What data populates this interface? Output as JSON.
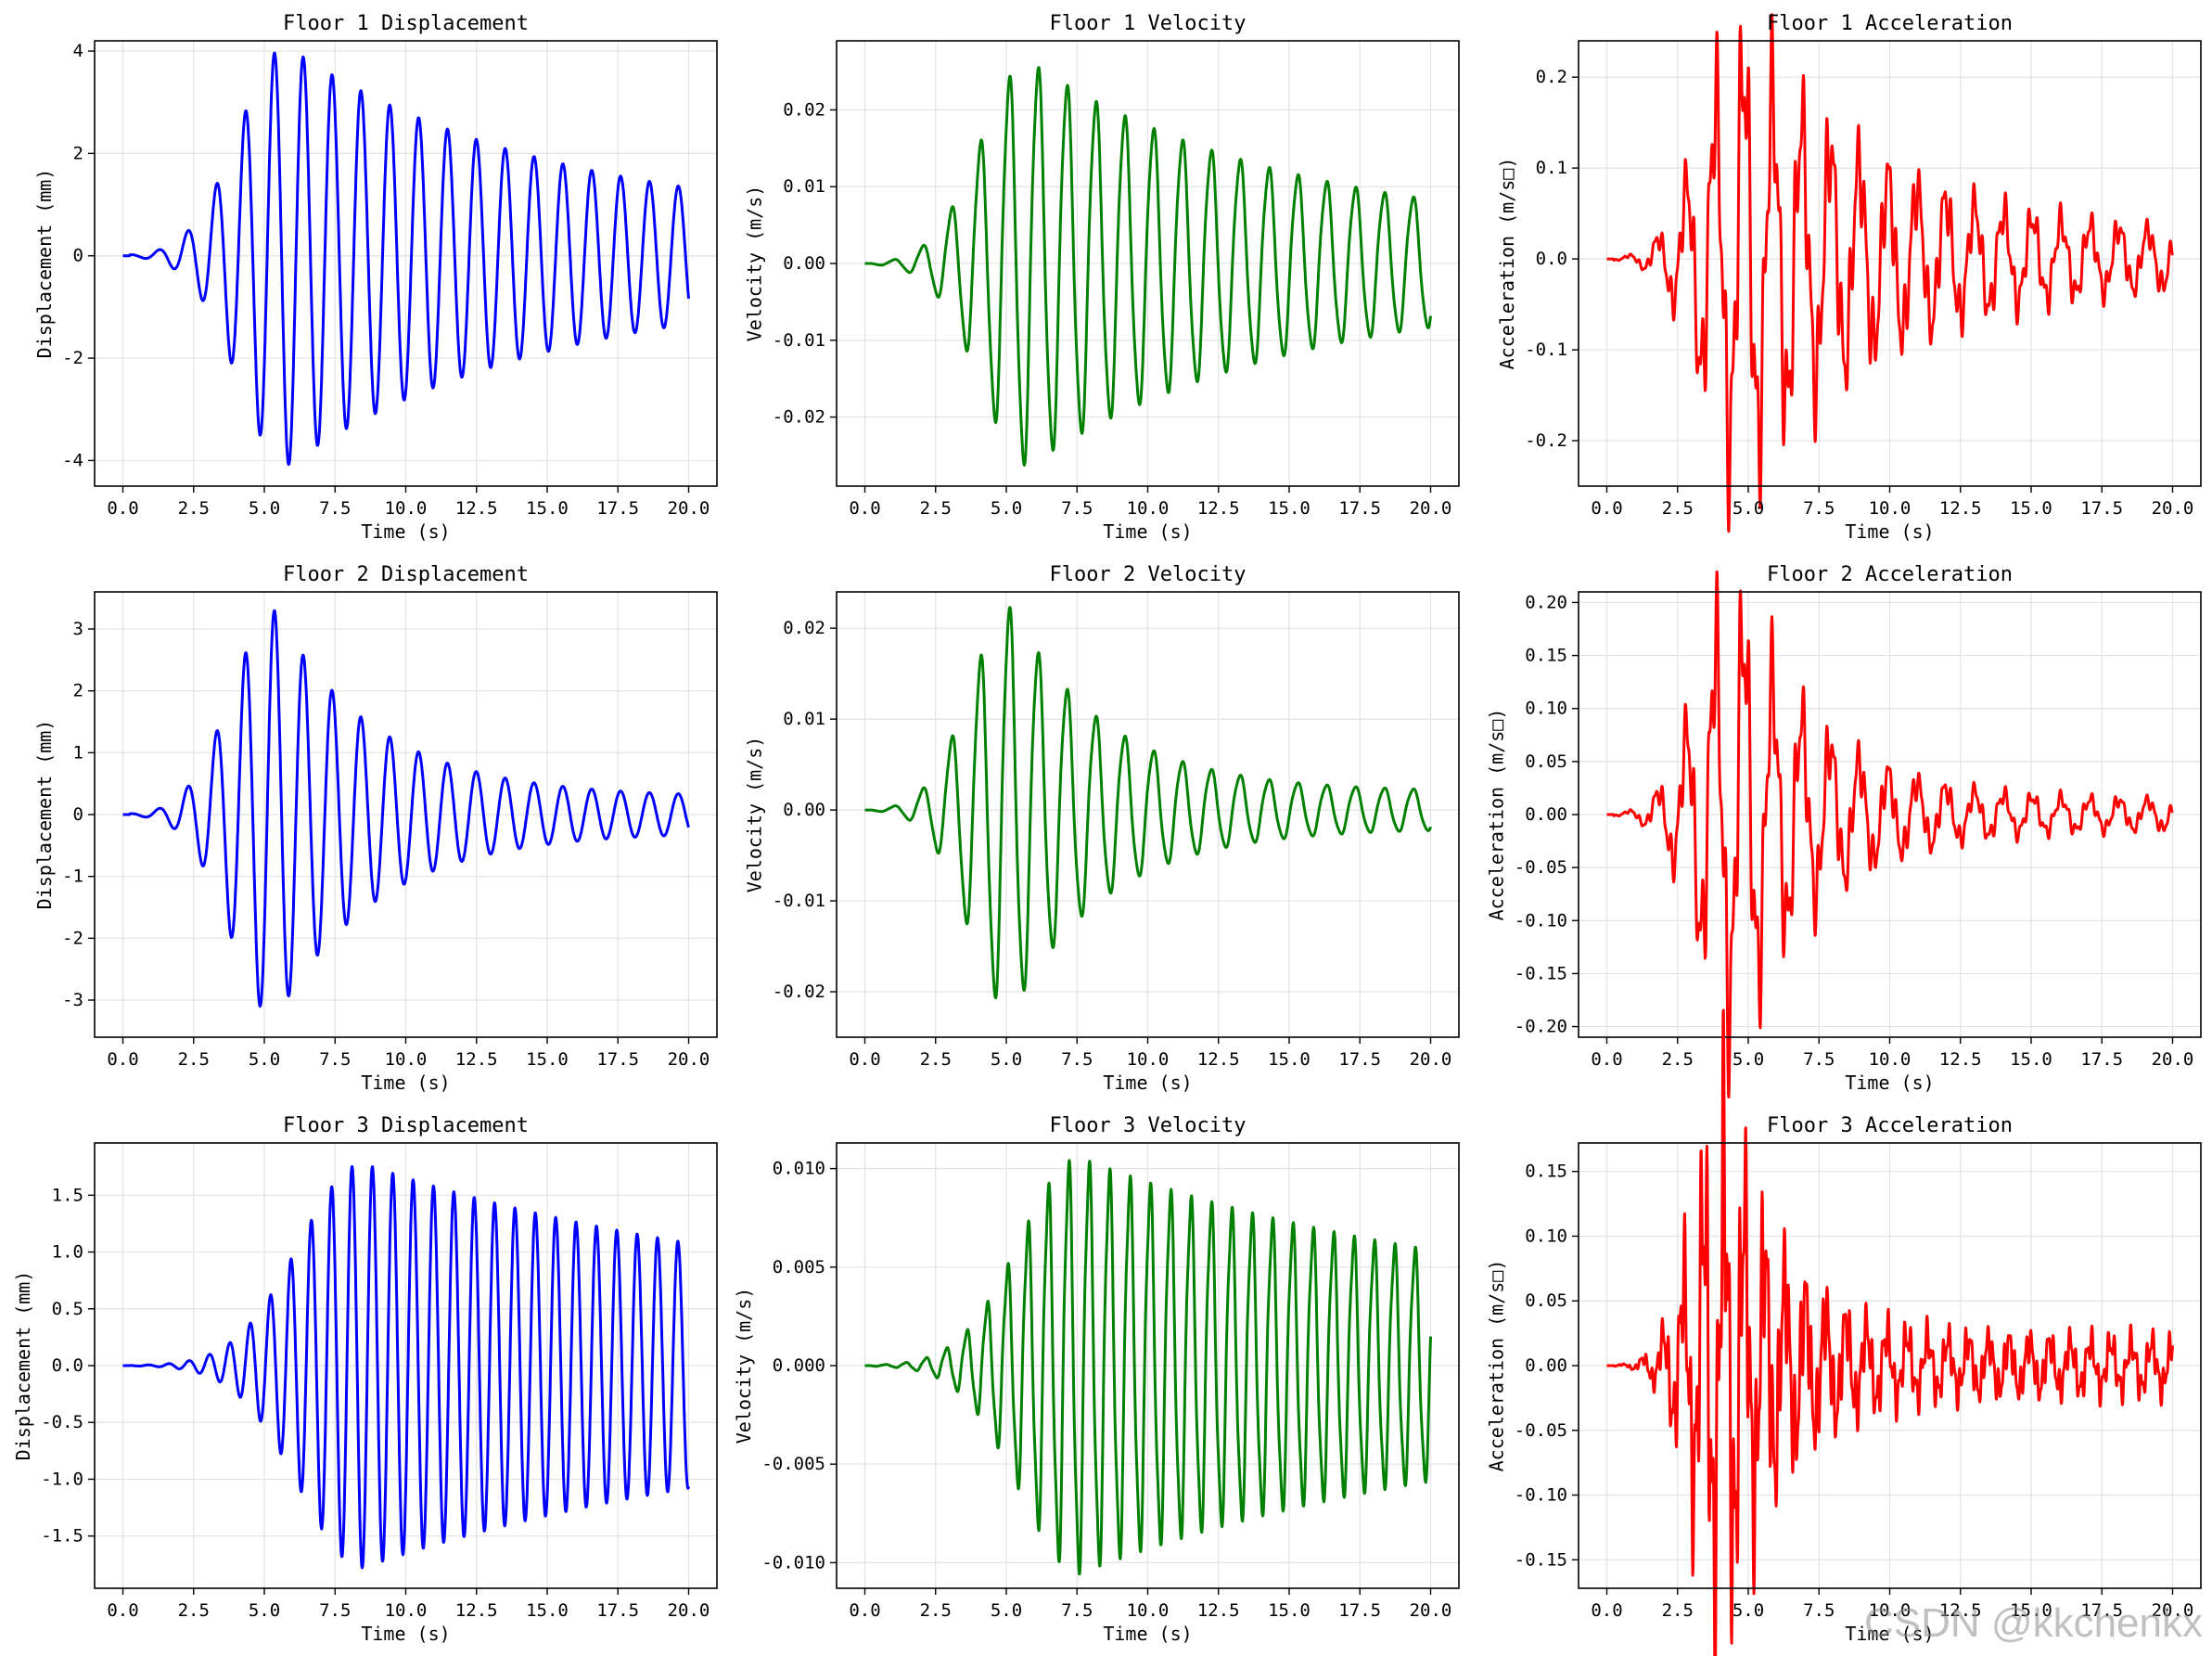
{
  "chart_data": [
    {
      "type": "line",
      "title": "Floor 1 Displacement",
      "xlabel": "Time (s)",
      "ylabel": "Displacement (mm)",
      "color": "#0000ff",
      "xlim": [
        -1,
        21
      ],
      "ylim": [
        -4.5,
        4.2
      ],
      "xticks": [
        "0.0",
        "2.5",
        "5.0",
        "7.5",
        "10.0",
        "12.5",
        "15.0",
        "17.5",
        "20.0"
      ],
      "yticks": [
        {
          "v": -4,
          "l": "-4"
        },
        {
          "v": -2,
          "l": "-2"
        },
        {
          "v": 0,
          "l": "0"
        },
        {
          "v": 2,
          "l": "2"
        },
        {
          "v": 4,
          "l": "4"
        }
      ],
      "gen": {
        "kind": "disp",
        "amp": 4.1,
        "peakT": 5.8,
        "rise": 2.4,
        "decay": 0.11,
        "floor": 0.6,
        "period": 1.02,
        "noise": 0
      }
    },
    {
      "type": "line",
      "title": "Floor 1 Velocity",
      "xlabel": "Time (s)",
      "ylabel": "Velocity (m/s)",
      "color": "#008000",
      "xlim": [
        -1,
        21
      ],
      "ylim": [
        -0.029,
        0.029
      ],
      "xticks": [
        "0.0",
        "2.5",
        "5.0",
        "7.5",
        "10.0",
        "12.5",
        "15.0",
        "17.5",
        "20.0"
      ],
      "yticks": [
        {
          "v": -0.02,
          "l": "-0.02"
        },
        {
          "v": -0.01,
          "l": "-0.01"
        },
        {
          "v": 0,
          "l": "0.00"
        },
        {
          "v": 0.01,
          "l": "0.01"
        },
        {
          "v": 0.02,
          "l": "0.02"
        }
      ],
      "gen": {
        "kind": "vel",
        "amp": 0.026,
        "peakT": 5.8,
        "rise": 2.4,
        "decay": 0.11,
        "floor": 0.0035,
        "period": 1.02,
        "noise": 0.06
      }
    },
    {
      "type": "line",
      "title": "Floor 1 Acceleration",
      "xlabel": "Time (s)",
      "ylabel": "Acceleration (m/s□)",
      "color": "#ff0000",
      "xlim": [
        -1,
        21
      ],
      "ylim": [
        -0.25,
        0.24
      ],
      "xticks": [
        "0.0",
        "2.5",
        "5.0",
        "7.5",
        "10.0",
        "12.5",
        "15.0",
        "17.5",
        "20.0"
      ],
      "yticks": [
        {
          "v": -0.2,
          "l": "-0.2"
        },
        {
          "v": -0.1,
          "l": "-0.1"
        },
        {
          "v": 0,
          "l": "0.0"
        },
        {
          "v": 0.1,
          "l": "0.1"
        },
        {
          "v": 0.2,
          "l": "0.2"
        }
      ],
      "gen": {
        "kind": "acc",
        "amp": 0.21,
        "peakT": 4.8,
        "rise": 2.0,
        "decay": 0.2,
        "floor": 0.02,
        "period": 1.02,
        "noise": 0.35
      }
    },
    {
      "type": "line",
      "title": "Floor 2 Displacement",
      "xlabel": "Time (s)",
      "ylabel": "Displacement (mm)",
      "color": "#0000ff",
      "xlim": [
        -1,
        21
      ],
      "ylim": [
        -3.6,
        3.6
      ],
      "xticks": [
        "0.0",
        "2.5",
        "5.0",
        "7.5",
        "10.0",
        "12.5",
        "15.0",
        "17.5",
        "20.0"
      ],
      "yticks": [
        {
          "v": -3,
          "l": "-3"
        },
        {
          "v": -2,
          "l": "-2"
        },
        {
          "v": -1,
          "l": "-1"
        },
        {
          "v": 0,
          "l": "0"
        },
        {
          "v": 1,
          "l": "1"
        },
        {
          "v": 2,
          "l": "2"
        },
        {
          "v": 3,
          "l": "3"
        }
      ],
      "gen": {
        "kind": "disp",
        "amp": 3.3,
        "peakT": 5.4,
        "rise": 2.2,
        "decay": 0.28,
        "floor": 0.28,
        "period": 1.02,
        "noise": 0
      }
    },
    {
      "type": "line",
      "title": "Floor 2 Velocity",
      "xlabel": "Time (s)",
      "ylabel": "Velocity (m/s)",
      "color": "#008000",
      "xlim": [
        -1,
        21
      ],
      "ylim": [
        -0.025,
        0.024
      ],
      "xticks": [
        "0.0",
        "2.5",
        "5.0",
        "7.5",
        "10.0",
        "12.5",
        "15.0",
        "17.5",
        "20.0"
      ],
      "yticks": [
        {
          "v": -0.02,
          "l": "-0.02"
        },
        {
          "v": -0.01,
          "l": "-0.01"
        },
        {
          "v": 0,
          "l": "0.00"
        },
        {
          "v": 0.01,
          "l": "0.01"
        },
        {
          "v": 0.02,
          "l": "0.02"
        }
      ],
      "gen": {
        "kind": "vel",
        "amp": 0.022,
        "peakT": 5.2,
        "rise": 2.1,
        "decay": 0.3,
        "floor": 0.002,
        "period": 1.02,
        "noise": 0.06
      }
    },
    {
      "type": "line",
      "title": "Floor 2 Acceleration",
      "xlabel": "Time (s)",
      "ylabel": "Acceleration (m/s□)",
      "color": "#ff0000",
      "xlim": [
        -1,
        21
      ],
      "ylim": [
        -0.21,
        0.21
      ],
      "xticks": [
        "0.0",
        "2.5",
        "5.0",
        "7.5",
        "10.0",
        "12.5",
        "15.0",
        "17.5",
        "20.0"
      ],
      "yticks": [
        {
          "v": -0.2,
          "l": "-0.20"
        },
        {
          "v": -0.15,
          "l": "-0.15"
        },
        {
          "v": -0.1,
          "l": "-0.10"
        },
        {
          "v": -0.05,
          "l": "-0.05"
        },
        {
          "v": 0,
          "l": "0.00"
        },
        {
          "v": 0.05,
          "l": "0.05"
        },
        {
          "v": 0.1,
          "l": "0.10"
        },
        {
          "v": 0.15,
          "l": "0.15"
        },
        {
          "v": 0.2,
          "l": "0.20"
        }
      ],
      "gen": {
        "kind": "acc",
        "amp": 0.18,
        "peakT": 4.6,
        "rise": 1.9,
        "decay": 0.35,
        "floor": 0.012,
        "period": 1.02,
        "noise": 0.35
      }
    },
    {
      "type": "line",
      "title": "Floor 3 Displacement",
      "xlabel": "Time (s)",
      "ylabel": "Displacement (mm)",
      "color": "#0000ff",
      "xlim": [
        -1,
        21
      ],
      "ylim": [
        -1.96,
        1.96
      ],
      "xticks": [
        "0.0",
        "2.5",
        "5.0",
        "7.5",
        "10.0",
        "12.5",
        "15.0",
        "17.5",
        "20.0"
      ],
      "yticks": [
        {
          "v": -1.5,
          "l": "-1.5"
        },
        {
          "v": -1,
          "l": "-1.0"
        },
        {
          "v": -0.5,
          "l": "-0.5"
        },
        {
          "v": 0,
          "l": "0.0"
        },
        {
          "v": 0.5,
          "l": "0.5"
        },
        {
          "v": 1,
          "l": "1.0"
        },
        {
          "v": 1.5,
          "l": "1.5"
        }
      ],
      "gen": {
        "kind": "disp",
        "amp": 1.78,
        "peakT": 8.5,
        "rise": 3.2,
        "decay": 0.065,
        "floor": 0.45,
        "period": 0.72,
        "noise": 0
      }
    },
    {
      "type": "line",
      "title": "Floor 3 Velocity",
      "xlabel": "Time (s)",
      "ylabel": "Velocity (m/s)",
      "color": "#008000",
      "xlim": [
        -1,
        21
      ],
      "ylim": [
        -0.0113,
        0.0113
      ],
      "xticks": [
        "0.0",
        "2.5",
        "5.0",
        "7.5",
        "10.0",
        "12.5",
        "15.0",
        "17.5",
        "20.0"
      ],
      "yticks": [
        {
          "v": -0.01,
          "l": "-0.010"
        },
        {
          "v": -0.005,
          "l": "-0.005"
        },
        {
          "v": 0,
          "l": "0.000"
        },
        {
          "v": 0.005,
          "l": "0.005"
        },
        {
          "v": 0.01,
          "l": "0.010"
        }
      ],
      "gen": {
        "kind": "vel",
        "amp": 0.0102,
        "peakT": 7.6,
        "rise": 3.0,
        "decay": 0.07,
        "floor": 0.0024,
        "period": 0.72,
        "noise": 0.1
      }
    },
    {
      "type": "line",
      "title": "Floor 3 Acceleration",
      "xlabel": "Time (s)",
      "ylabel": "Acceleration (m/s□)",
      "color": "#ff0000",
      "xlim": [
        -1,
        21
      ],
      "ylim": [
        -0.172,
        0.172
      ],
      "xticks": [
        "0.0",
        "2.5",
        "5.0",
        "7.5",
        "10.0",
        "12.5",
        "15.0",
        "17.5",
        "20.0"
      ],
      "yticks": [
        {
          "v": -0.15,
          "l": "-0.15"
        },
        {
          "v": -0.1,
          "l": "-0.10"
        },
        {
          "v": -0.05,
          "l": "-0.05"
        },
        {
          "v": 0,
          "l": "0.00"
        },
        {
          "v": 0.05,
          "l": "0.05"
        },
        {
          "v": 0.1,
          "l": "0.10"
        },
        {
          "v": 0.15,
          "l": "0.15"
        }
      ],
      "gen": {
        "kind": "acc",
        "amp": 0.15,
        "peakT": 4.2,
        "rise": 1.6,
        "decay": 0.5,
        "floor": 0.017,
        "period": 0.72,
        "noise": 0.55
      }
    }
  ],
  "watermark": "CSDN @kkchenkx"
}
